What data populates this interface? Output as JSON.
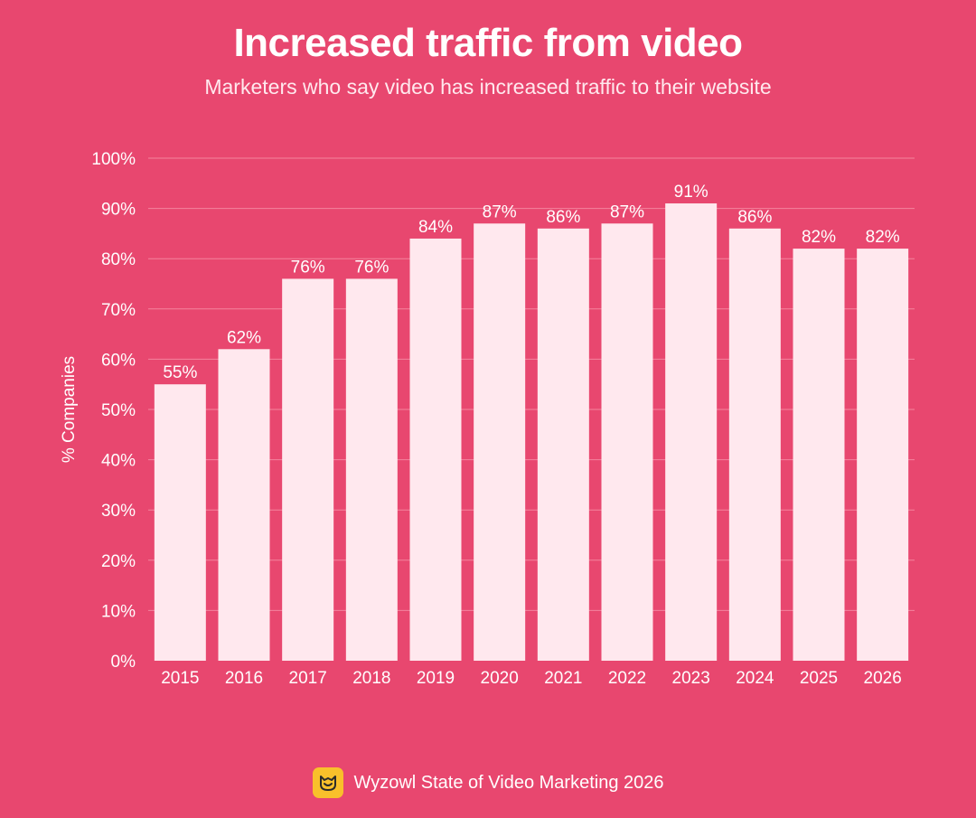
{
  "colors": {
    "background": "#E8476F",
    "bar": "#FFE8EE",
    "gridline": "#F4849E",
    "text": "#FFFFFF",
    "logo": "#F9C02B"
  },
  "chart_data": {
    "type": "bar",
    "title": "Increased traffic from video",
    "subtitle": "Marketers who say video has increased traffic to their website",
    "xlabel": "",
    "ylabel": "% Companies",
    "categories": [
      "2015",
      "2016",
      "2017",
      "2018",
      "2019",
      "2020",
      "2021",
      "2022",
      "2023",
      "2024",
      "2025",
      "2026"
    ],
    "values": [
      55,
      62,
      76,
      76,
      84,
      87,
      86,
      87,
      91,
      86,
      82,
      82
    ],
    "data_labels": [
      "55%",
      "62%",
      "76%",
      "76%",
      "84%",
      "87%",
      "86%",
      "87%",
      "91%",
      "86%",
      "82%",
      "82%"
    ],
    "ylim": [
      0,
      100
    ],
    "yticks": [
      0,
      10,
      20,
      30,
      40,
      50,
      60,
      70,
      80,
      90,
      100
    ],
    "ytick_labels": [
      "0%",
      "10%",
      "20%",
      "30%",
      "40%",
      "50%",
      "60%",
      "70%",
      "80%",
      "90%",
      "100%"
    ],
    "grid": true,
    "legend": "none"
  },
  "footer": {
    "logo_icon": "wyzowl-owl-icon",
    "source": "Wyzowl State of Video Marketing 2026"
  }
}
